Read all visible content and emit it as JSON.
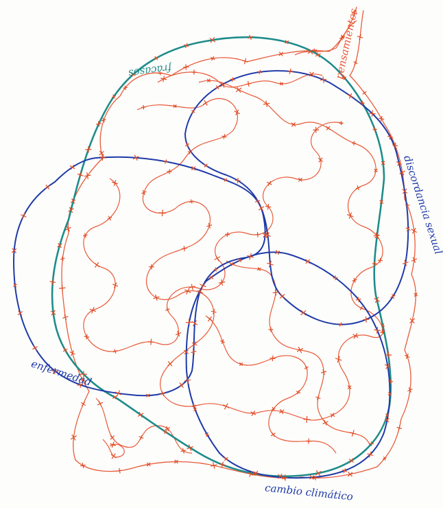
{
  "labels": {
    "fracaso": "fracasos",
    "pensamientos": "pensamientos",
    "discordancia": "discordancia sexual",
    "enfermedad": "enfermedad",
    "cambio": "cambio climático"
  },
  "colors": {
    "paper": "#fdfdfb",
    "red_thread": "#e85a3a",
    "cross_mark": "#e04a22",
    "teal_loop": "#1e8c8a",
    "blue_loop": "#1f3aa8",
    "label_teal": "#1e8c8a",
    "label_red": "#e85a3a",
    "label_blue": "#1f3aa8"
  }
}
